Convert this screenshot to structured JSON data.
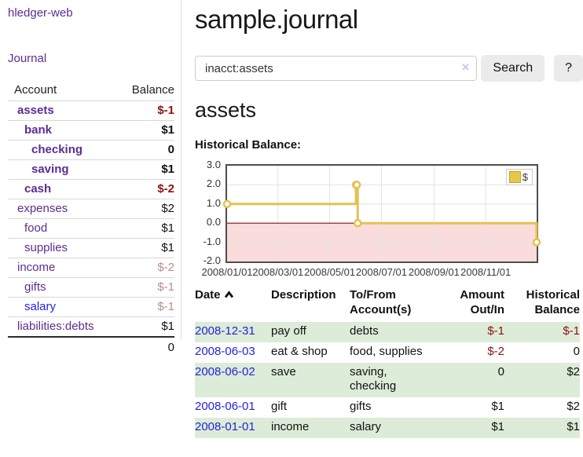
{
  "app": {
    "brand": "hledger-web",
    "nav_journal": "Journal"
  },
  "sidebar": {
    "header": {
      "account": "Account",
      "balance": "Balance"
    },
    "accounts": [
      {
        "name": "assets",
        "level": 1,
        "bold": true,
        "link_color": "purple",
        "balance": "$-1",
        "balance_style": "neg"
      },
      {
        "name": "bank",
        "level": 2,
        "bold": true,
        "link_color": "purple",
        "balance": "$1",
        "balance_style": ""
      },
      {
        "name": "checking",
        "level": 3,
        "bold": true,
        "link_color": "purple",
        "balance": "0",
        "balance_style": ""
      },
      {
        "name": "saving",
        "level": 3,
        "bold": true,
        "link_color": "purple",
        "balance": "$1",
        "balance_style": ""
      },
      {
        "name": "cash",
        "level": 2,
        "bold": true,
        "link_color": "purple",
        "balance": "$-2",
        "balance_style": "neg"
      },
      {
        "name": "expenses",
        "level": 1,
        "bold": false,
        "link_color": "purple",
        "balance": "$2",
        "balance_style": ""
      },
      {
        "name": "food",
        "level": 2,
        "bold": false,
        "link_color": "purple",
        "balance": "$1",
        "balance_style": ""
      },
      {
        "name": "supplies",
        "level": 2,
        "bold": false,
        "link_color": "purple",
        "balance": "$1",
        "balance_style": ""
      },
      {
        "name": "income",
        "level": 1,
        "bold": false,
        "link_color": "purple",
        "balance": "$-2",
        "balance_style": "neg-faded"
      },
      {
        "name": "gifts",
        "level": 2,
        "bold": false,
        "link_color": "purple",
        "balance": "$-1",
        "balance_style": "neg-faded"
      },
      {
        "name": "salary",
        "level": 2,
        "bold": false,
        "link_color": "blue",
        "balance": "$-1",
        "balance_style": "neg-faded"
      },
      {
        "name": "liabilities:debts",
        "level": 1,
        "bold": false,
        "link_color": "purple",
        "balance": "$1",
        "balance_style": ""
      }
    ],
    "total": "0"
  },
  "main": {
    "title": "sample.journal",
    "search": {
      "value": "inacct:assets",
      "clear_icon": "×",
      "button": "Search",
      "help": "?"
    },
    "account_heading": "assets",
    "chart_label": "Historical Balance:"
  },
  "chart_data": {
    "type": "line",
    "step": true,
    "title": "Historical Balance:",
    "series": [
      {
        "name": "$",
        "color": "#e6c151",
        "points": [
          [
            "2008-01-01",
            1
          ],
          [
            "2008-06-01",
            2
          ],
          [
            "2008-06-02",
            2
          ],
          [
            "2008-06-03",
            0
          ],
          [
            "2008-12-31",
            -1
          ]
        ]
      }
    ],
    "ylim": [
      -2,
      3
    ],
    "yticks": [
      3.0,
      2.0,
      1.0,
      0.0,
      -1.0,
      -2.0
    ],
    "xticks": [
      "2008/01/01",
      "2008/03/01",
      "2008/05/01",
      "2008/07/01",
      "2008/09/01",
      "2008/11/01"
    ],
    "grid": true,
    "legend_position": "top-right",
    "negative_region_color": "#fadcdc",
    "zero_line_color": "#7c1016",
    "grid_color": "#e3e3e3",
    "marker_fill": "#ffffff"
  },
  "register": {
    "headers": [
      "Date",
      "Description",
      "To/From\nAccount(s)",
      "Amount\nOut/In",
      "Historical\nBalance"
    ],
    "rows": [
      {
        "date": "2008-12-31",
        "description": "pay off",
        "accounts": "debts",
        "amount": "$-1",
        "amount_neg": true,
        "balance": "$-1",
        "balance_neg": true,
        "shaded": true
      },
      {
        "date": "2008-06-03",
        "description": "eat & shop",
        "accounts": "food, supplies",
        "amount": "$-2",
        "amount_neg": true,
        "balance": "0",
        "balance_neg": false,
        "shaded": false
      },
      {
        "date": "2008-06-02",
        "description": "save",
        "accounts": "saving,\nchecking",
        "amount": "0",
        "amount_neg": false,
        "balance": "$2",
        "balance_neg": false,
        "shaded": true
      },
      {
        "date": "2008-06-01",
        "description": "gift",
        "accounts": "gifts",
        "amount": "$1",
        "amount_neg": false,
        "balance": "$2",
        "balance_neg": false,
        "shaded": false
      },
      {
        "date": "2008-01-01",
        "description": "income",
        "accounts": "salary",
        "amount": "$1",
        "amount_neg": false,
        "balance": "$1",
        "balance_neg": false,
        "shaded": true
      }
    ]
  },
  "colors": {
    "link_purple": "#5b2d91",
    "link_blue": "#2323dc",
    "negative_red": "#8c1212",
    "negative_faded": "#ba8c8c",
    "row_green": "#ddecd8",
    "chart_line_yellow": "#e6c151"
  }
}
